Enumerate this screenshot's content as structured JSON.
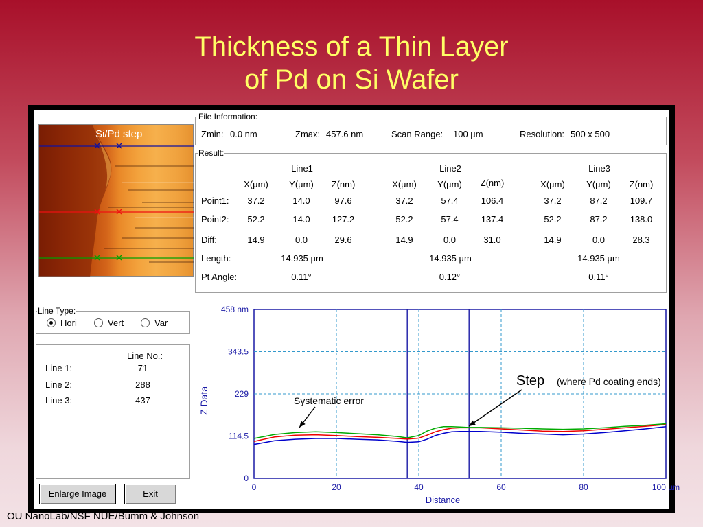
{
  "slide": {
    "title_line1": "Thickness of a Thin Layer",
    "title_line2": "of Pd on Si Wafer",
    "credit": "OU NanoLab/NSF NUE/Bumm & Johnson"
  },
  "image_label": "Si/Pd step",
  "file_info": {
    "title": "File Information:",
    "zmin_label": "Zmin:",
    "zmin": "0.0 nm",
    "zmax_label": "Zmax:",
    "zmax": "457.6 nm",
    "scan_range_label": "Scan Range:",
    "scan_range": "100 µm",
    "resolution_label": "Resolution:",
    "resolution": "500 x 500"
  },
  "result": {
    "title": "Result:",
    "row_labels": {
      "point1": "Point1:",
      "point2": "Point2:",
      "diff": "Diff:",
      "length": "Length:",
      "pt_angle": "Pt Angle:"
    },
    "col_headers": {
      "x": "X(µm)",
      "y": "Y(µm)",
      "z": "Z(nm)"
    },
    "lines": [
      {
        "name": "Line1",
        "point1": {
          "x": "37.2",
          "y": "14.0",
          "z": "97.6"
        },
        "point2": {
          "x": "52.2",
          "y": "14.0",
          "z": "127.2"
        },
        "diff": {
          "x": "14.9",
          "y": "0.0",
          "z": "29.6"
        },
        "length": "14.935 µm",
        "pt_angle": "0.11°"
      },
      {
        "name": "Line2",
        "point1": {
          "x": "37.2",
          "y": "57.4",
          "z": "106.4"
        },
        "point2": {
          "x": "52.2",
          "y": "57.4",
          "z": "137.4"
        },
        "diff": {
          "x": "14.9",
          "y": "0.0",
          "z": "31.0"
        },
        "length": "14.935 µm",
        "pt_angle": "0.12°"
      },
      {
        "name": "Line3",
        "point1": {
          "x": "37.2",
          "y": "87.2",
          "z": "109.7"
        },
        "point2": {
          "x": "52.2",
          "y": "87.2",
          "z": "138.0"
        },
        "diff": {
          "x": "14.9",
          "y": "0.0",
          "z": "28.3"
        },
        "length": "14.935 µm",
        "pt_angle": "0.11°"
      }
    ]
  },
  "line_type": {
    "title": "Line Type:",
    "options": [
      "Hori",
      "Vert",
      "Var"
    ],
    "selected": "Hori"
  },
  "line_no": {
    "header": "Line No.:",
    "rows": [
      {
        "label": "Line 1:",
        "value": "71"
      },
      {
        "label": "Line 2:",
        "value": "288"
      },
      {
        "label": "Line 3:",
        "value": "437"
      }
    ]
  },
  "buttons": {
    "enlarge": "Enlarge Image",
    "exit": "Exit"
  },
  "chart_data": {
    "type": "line",
    "ylabel": "Z Data",
    "xlabel": "Distance",
    "xlim": [
      0,
      100
    ],
    "ylim": [
      0,
      458
    ],
    "x_ticks": [
      "0",
      "20",
      "40",
      "60",
      "80",
      "100 µm"
    ],
    "y_ticks": [
      "0",
      "114.5",
      "229",
      "343.5",
      "458 nm"
    ],
    "cursors": [
      37.2,
      52.2
    ],
    "annotations": {
      "step_main": "Step",
      "step_note": "(where Pd coating ends)",
      "systematic": "Systematic error"
    },
    "colors": {
      "line1": "#0000cc",
      "line2": "#ee0000",
      "line3": "#00aa00",
      "axis": "#1a1aa6",
      "grid": "#3399cc"
    },
    "series": [
      {
        "color": "#0000cc",
        "x": [
          0,
          5,
          10,
          15,
          20,
          25,
          30,
          35,
          37.2,
          40,
          42,
          44,
          46,
          48,
          50,
          52,
          55,
          60,
          65,
          70,
          75,
          80,
          85,
          90,
          95,
          100
        ],
        "values": [
          92,
          102,
          106,
          108,
          108,
          106,
          104,
          100,
          97.6,
          99,
          106,
          116,
          122,
          126,
          127,
          127.2,
          127,
          125,
          122,
          120,
          118,
          120,
          124,
          129,
          134,
          140
        ]
      },
      {
        "color": "#ee0000",
        "x": [
          0,
          5,
          10,
          15,
          20,
          25,
          30,
          35,
          37.2,
          40,
          42,
          44,
          46,
          48,
          50,
          52,
          55,
          60,
          65,
          70,
          75,
          80,
          85,
          90,
          95,
          100
        ],
        "values": [
          100,
          112,
          117,
          118,
          116,
          113,
          111,
          108,
          106.4,
          109,
          117,
          126,
          132,
          136,
          137,
          137.4,
          137,
          134,
          131,
          128,
          127,
          129,
          133,
          137,
          141,
          146
        ]
      },
      {
        "color": "#00aa00",
        "x": [
          0,
          5,
          10,
          15,
          20,
          25,
          30,
          35,
          37.2,
          40,
          42,
          44,
          46,
          48,
          50,
          52,
          55,
          60,
          65,
          70,
          75,
          80,
          85,
          90,
          95,
          100
        ],
        "values": [
          108,
          119,
          124,
          126,
          124,
          121,
          118,
          113,
          109.7,
          116,
          128,
          136,
          140,
          140,
          139,
          138,
          138,
          137,
          136,
          134,
          133,
          134,
          137,
          141,
          144,
          148
        ]
      }
    ]
  }
}
